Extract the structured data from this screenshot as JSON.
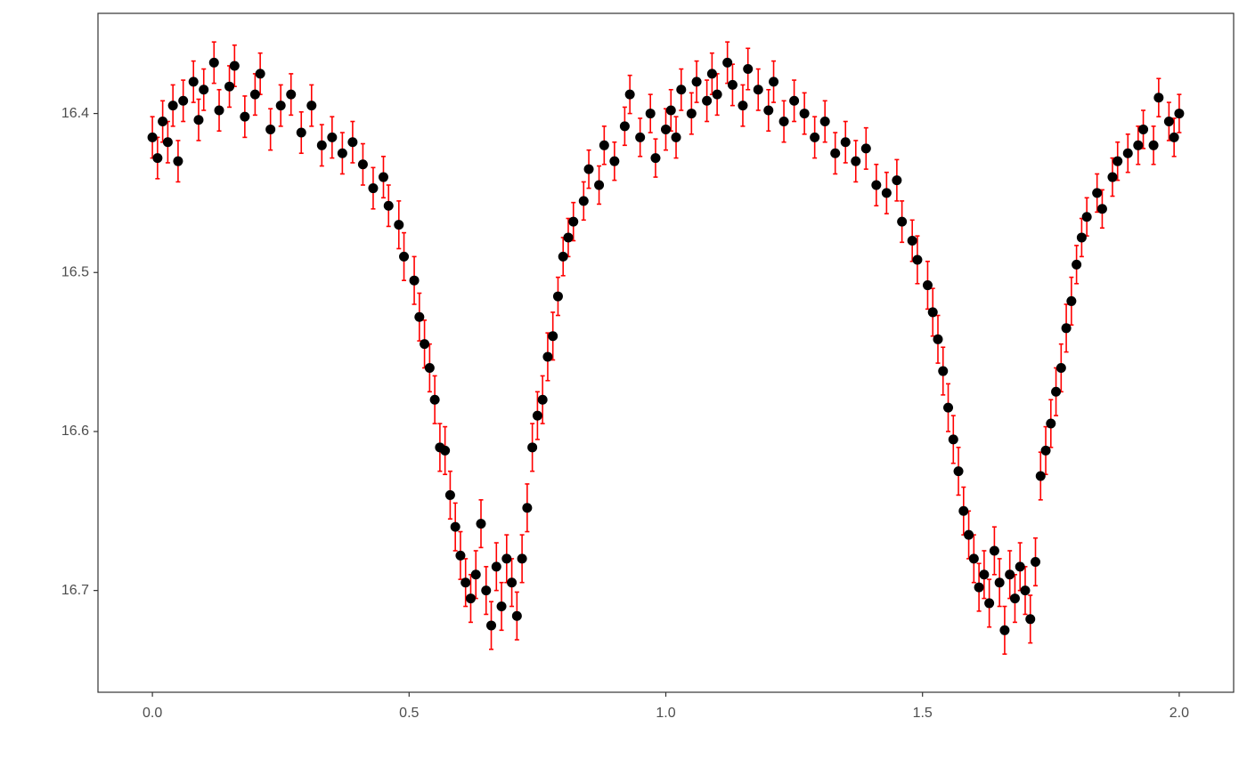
{
  "chart_data": {
    "type": "scatter",
    "xlim": [
      -0.106,
      2.106
    ],
    "ylim": [
      16.337,
      16.764
    ],
    "y_reversed": true,
    "xticks": [
      {
        "value": 0,
        "label": "0.0"
      },
      {
        "value": 0.5,
        "label": "0.5"
      },
      {
        "value": 1,
        "label": "1.0"
      },
      {
        "value": 1.5,
        "label": "1.5"
      },
      {
        "value": 2,
        "label": "2.0"
      }
    ],
    "yticks": [
      16.4,
      16.5,
      16.6,
      16.7
    ],
    "grid": false,
    "series": [
      {
        "color": "#000000",
        "error_color": "#ff0000",
        "x": [
          0,
          0.01,
          0.02,
          0.03,
          0.04,
          0.05,
          0.06,
          0.08,
          0.09,
          0.1,
          0.12,
          0.13,
          0.15,
          0.16,
          0.18,
          0.2,
          0.21,
          0.23,
          0.25,
          0.27,
          0.29,
          0.31,
          0.33,
          0.35,
          0.37,
          0.39,
          0.41,
          0.43,
          0.45,
          0.46,
          0.48,
          0.49,
          0.51,
          0.52,
          0.53,
          0.54,
          0.55,
          0.56,
          0.57,
          0.58,
          0.59,
          0.6,
          0.61,
          0.62,
          0.63,
          0.64,
          0.65,
          0.66,
          0.67,
          0.68,
          0.69,
          0.7,
          0.71,
          0.72,
          0.73,
          0.74,
          0.75,
          0.76,
          0.77,
          0.78,
          0.79,
          0.8,
          0.81,
          0.82,
          0.84,
          0.85,
          0.87,
          0.88,
          0.9,
          0.92,
          0.93,
          0.95,
          0.97,
          0.98,
          1,
          1.01,
          1.02,
          1.03,
          1.05,
          1.06,
          1.08,
          1.09,
          1.1,
          1.12,
          1.13,
          1.15,
          1.16,
          1.18,
          1.2,
          1.21,
          1.23,
          1.25,
          1.27,
          1.29,
          1.31,
          1.33,
          1.35,
          1.37,
          1.39,
          1.41,
          1.43,
          1.45,
          1.46,
          1.48,
          1.49,
          1.51,
          1.52,
          1.53,
          1.54,
          1.55,
          1.56,
          1.57,
          1.58,
          1.59,
          1.6,
          1.61,
          1.62,
          1.63,
          1.64,
          1.65,
          1.66,
          1.67,
          1.68,
          1.69,
          1.7,
          1.71,
          1.72,
          1.73,
          1.74,
          1.75,
          1.76,
          1.77,
          1.78,
          1.79,
          1.8,
          1.81,
          1.82,
          1.84,
          1.85,
          1.87,
          1.88,
          1.9,
          1.92,
          1.93,
          1.95,
          1.96,
          1.98,
          1.99,
          2
        ],
        "values": [
          16.415,
          16.428,
          16.405,
          16.418,
          16.395,
          16.43,
          16.392,
          16.38,
          16.404,
          16.385,
          16.368,
          16.398,
          16.383,
          16.37,
          16.402,
          16.388,
          16.375,
          16.41,
          16.395,
          16.388,
          16.412,
          16.395,
          16.42,
          16.415,
          16.425,
          16.418,
          16.432,
          16.447,
          16.44,
          16.458,
          16.47,
          16.49,
          16.505,
          16.528,
          16.545,
          16.56,
          16.58,
          16.61,
          16.612,
          16.64,
          16.66,
          16.678,
          16.695,
          16.705,
          16.69,
          16.658,
          16.7,
          16.722,
          16.685,
          16.71,
          16.68,
          16.695,
          16.716,
          16.68,
          16.648,
          16.61,
          16.59,
          16.58,
          16.553,
          16.54,
          16.515,
          16.49,
          16.478,
          16.468,
          16.455,
          16.435,
          16.445,
          16.42,
          16.43,
          16.408,
          16.388,
          16.415,
          16.4,
          16.428,
          16.41,
          16.398,
          16.415,
          16.385,
          16.4,
          16.38,
          16.392,
          16.375,
          16.388,
          16.368,
          16.382,
          16.395,
          16.372,
          16.385,
          16.398,
          16.38,
          16.405,
          16.392,
          16.4,
          16.415,
          16.405,
          16.425,
          16.418,
          16.43,
          16.422,
          16.445,
          16.45,
          16.442,
          16.468,
          16.48,
          16.492,
          16.508,
          16.525,
          16.542,
          16.562,
          16.585,
          16.605,
          16.625,
          16.65,
          16.665,
          16.68,
          16.698,
          16.69,
          16.708,
          16.675,
          16.695,
          16.725,
          16.69,
          16.705,
          16.685,
          16.7,
          16.718,
          16.682,
          16.628,
          16.612,
          16.595,
          16.575,
          16.56,
          16.535,
          16.518,
          16.495,
          16.478,
          16.465,
          16.45,
          16.46,
          16.44,
          16.43,
          16.425,
          16.42,
          16.41,
          16.42,
          16.39,
          16.405,
          16.415,
          16.4
        ],
        "errors": [
          0.013,
          0.013,
          0.013,
          0.013,
          0.013,
          0.013,
          0.013,
          0.013,
          0.013,
          0.013,
          0.013,
          0.013,
          0.013,
          0.013,
          0.013,
          0.013,
          0.013,
          0.013,
          0.013,
          0.013,
          0.013,
          0.013,
          0.013,
          0.013,
          0.013,
          0.013,
          0.013,
          0.013,
          0.013,
          0.013,
          0.015,
          0.015,
          0.015,
          0.015,
          0.015,
          0.015,
          0.015,
          0.015,
          0.015,
          0.015,
          0.015,
          0.015,
          0.015,
          0.015,
          0.015,
          0.015,
          0.015,
          0.015,
          0.015,
          0.015,
          0.015,
          0.015,
          0.015,
          0.015,
          0.015,
          0.015,
          0.015,
          0.015,
          0.015,
          0.015,
          0.012,
          0.012,
          0.012,
          0.012,
          0.012,
          0.012,
          0.012,
          0.012,
          0.012,
          0.012,
          0.012,
          0.012,
          0.012,
          0.012,
          0.013,
          0.013,
          0.013,
          0.013,
          0.013,
          0.013,
          0.013,
          0.013,
          0.013,
          0.013,
          0.013,
          0.013,
          0.013,
          0.013,
          0.013,
          0.013,
          0.013,
          0.013,
          0.013,
          0.013,
          0.013,
          0.013,
          0.013,
          0.013,
          0.013,
          0.013,
          0.013,
          0.013,
          0.013,
          0.013,
          0.015,
          0.015,
          0.015,
          0.015,
          0.015,
          0.015,
          0.015,
          0.015,
          0.015,
          0.015,
          0.015,
          0.015,
          0.015,
          0.015,
          0.015,
          0.015,
          0.015,
          0.015,
          0.015,
          0.015,
          0.015,
          0.015,
          0.015,
          0.015,
          0.015,
          0.015,
          0.015,
          0.015,
          0.015,
          0.015,
          0.012,
          0.012,
          0.012,
          0.012,
          0.012,
          0.012,
          0.012,
          0.012,
          0.012,
          0.012,
          0.012,
          0.012,
          0.012,
          0.012,
          0.012
        ]
      }
    ]
  }
}
